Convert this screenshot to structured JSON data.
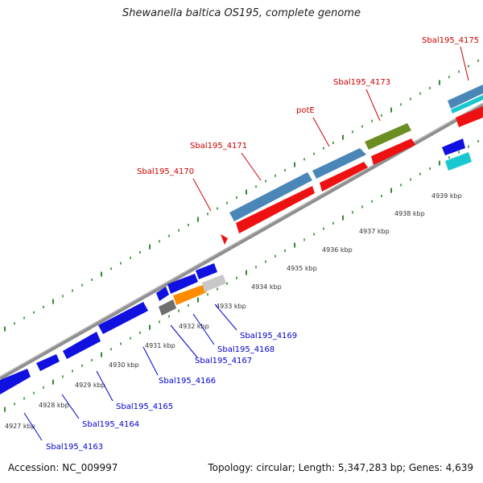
{
  "title": "Shewanella baltica OS195, complete genome",
  "accession_label": "Accession: NC_009997",
  "stats_label": "Topology: circular; Length: 5,347,283 bp; Genes: 4,639",
  "colors": {
    "backbone": "#8f8f8f",
    "tick": "#2e8b2e",
    "top_label": "#cc0000",
    "bottom_label": "#0000cc",
    "red": "#ee1111",
    "steelblue": "#4a86b8",
    "olive": "#6b8e23",
    "cyan": "#18c8d0",
    "blue": "#1010e0",
    "orange": "#ff8c00",
    "gray": "#6e6e6e",
    "lightgray": "#c8c8c8"
  },
  "kbp_labels": [
    "4927 kbp",
    "4928 kbp",
    "4929 kbp",
    "4930 kbp",
    "4931 kbp",
    "4932 kbp",
    "4933 kbp",
    "4934 kbp",
    "4935 kbp",
    "4936 kbp",
    "4937 kbp",
    "4938 kbp",
    "4939 kbp"
  ],
  "top_labels": [
    "Sbal195_4170",
    "Sbal195_4171",
    "potE",
    "Sbal195_4173",
    "Sbal195_4175"
  ],
  "bottom_labels": [
    "Sbal195_4163",
    "Sbal195_4164",
    "Sbal195_4165",
    "Sbal195_4166",
    "Sbal195_4167",
    "Sbal195_4168",
    "Sbal195_4169"
  ]
}
